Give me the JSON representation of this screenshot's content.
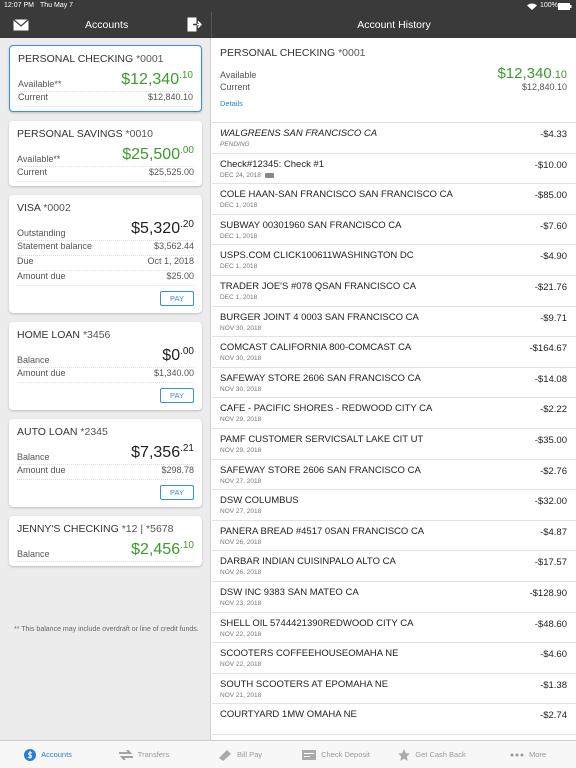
{
  "status_bar": {
    "time": "12:07 PM",
    "date": "Thu May 7",
    "battery": "100%"
  },
  "left_header": {
    "title": "Accounts"
  },
  "right_header": {
    "title": "Account History"
  },
  "accounts": [
    {
      "name": "PERSONAL CHECKING",
      "number": "*0001",
      "selected": true,
      "rows": [
        {
          "label": "Available**",
          "main": "$12,340",
          "cents": ".10",
          "green": true
        },
        {
          "label": "Current",
          "value": "$12,840.10"
        }
      ]
    },
    {
      "name": "PERSONAL SAVINGS",
      "number": "*0010",
      "rows": [
        {
          "label": "Available**",
          "main": "$25,500",
          "cents": ".00",
          "green": true
        },
        {
          "label": "Current",
          "value": "$25,525.00"
        }
      ]
    },
    {
      "name": "VISA",
      "number": "*0002",
      "rows": [
        {
          "label": "Outstanding",
          "main": "$5,320",
          "cents": ".20"
        },
        {
          "label": "Statement balance",
          "value": "$3,562.44"
        },
        {
          "label": "Due",
          "value": "Oct 1, 2018"
        },
        {
          "label": "Amount due",
          "value": "$25.00"
        }
      ],
      "pay": "PAY"
    },
    {
      "name": "HOME LOAN",
      "number": "*3456",
      "rows": [
        {
          "label": "Balance",
          "main": "$0",
          "cents": ".00"
        },
        {
          "label": "Amount due",
          "value": "$1,340.00"
        }
      ],
      "pay": "PAY"
    },
    {
      "name": "AUTO LOAN",
      "number": "*2345",
      "rows": [
        {
          "label": "Balance",
          "main": "$7,356",
          "cents": ".21"
        },
        {
          "label": "Amount due",
          "value": "$298.78"
        }
      ],
      "pay": "PAY"
    },
    {
      "name": "JENNY'S CHECKING",
      "number": "*12 | *5678",
      "rows": [
        {
          "label": "Balance",
          "main": "$2,456",
          "cents": ".10",
          "green": true
        }
      ]
    }
  ],
  "footnote": "** This balance may include overdraft or line of credit funds.",
  "summary": {
    "name": "PERSONAL CHECKING",
    "number": "*0001",
    "available_label": "Available",
    "available_main": "$12,340",
    "available_cents": ".10",
    "current_label": "Current",
    "current": "$12,840.10",
    "details": "Details"
  },
  "transactions": [
    {
      "description": "WALGREENS SAN FRANCISCO CA",
      "date": "PENDING",
      "amount": "-$4.33",
      "italic": true
    },
    {
      "description": "Check#12345: Check #1",
      "date": "DEC 24, 2018",
      "amount": "-$10.00",
      "check_icon": true
    },
    {
      "description": "COLE HAAN-SAN FRANCISCO SAN FRANCISCO CA",
      "date": "DEC 1, 2018",
      "amount": "-$85.00"
    },
    {
      "description": "SUBWAY 00301960 SAN FRANCISCO CA",
      "date": "DEC 1, 2018",
      "amount": "-$7.60"
    },
    {
      "description": "USPS.COM CLICK100611WASHINGTON DC",
      "date": "DEC 1, 2018",
      "amount": "-$4.90"
    },
    {
      "description": "TRADER JOE'S #078 QSAN FRANCISCO CA",
      "date": "DEC 1, 2018",
      "amount": "-$21.76"
    },
    {
      "description": "BURGER JOINT 4 0003 SAN FRANCISCO CA",
      "date": "NOV 30, 2018",
      "amount": "-$9.71"
    },
    {
      "description": "COMCAST CALIFORNIA 800-COMCAST CA",
      "date": "NOV 30, 2018",
      "amount": "-$164.67"
    },
    {
      "description": "SAFEWAY STORE 2606 SAN FRANCISCO CA",
      "date": "NOV 30, 2018",
      "amount": "-$14.08"
    },
    {
      "description": "CAFE - PACIFIC SHORES - REDWOOD CITY CA",
      "date": "NOV 29, 2018",
      "amount": "-$2.22"
    },
    {
      "description": "PAMF CUSTOMER SERVICSALT LAKE CIT UT",
      "date": "NOV 29, 2018",
      "amount": "-$35.00"
    },
    {
      "description": "SAFEWAY STORE 2606 SAN FRANCISCO CA",
      "date": "NOV 27, 2018",
      "amount": "-$2.76"
    },
    {
      "description": "DSW COLUMBUS",
      "date": "NOV 27, 2018",
      "amount": "-$32.00"
    },
    {
      "description": "PANERA BREAD #4517 0SAN FRANCISCO CA",
      "date": "NOV 26, 2018",
      "amount": "-$4.87"
    },
    {
      "description": "DARBAR INDIAN CUISINPALO ALTO CA",
      "date": "NOV 26, 2018",
      "amount": "-$17.57"
    },
    {
      "description": "DSW INC 9383 SAN MATEO CA",
      "date": "NOV 23, 2018",
      "amount": "-$128.90"
    },
    {
      "description": "SHELL OIL 5744421390REDWOOD CITY CA",
      "date": "NOV 22, 2018",
      "amount": "-$48.60"
    },
    {
      "description": "SCOOTERS COFFEEHOUSEOMAHA NE",
      "date": "NOV 22, 2018",
      "amount": "-$4.60"
    },
    {
      "description": "SOUTH SCOOTERS AT EPOMAHA NE",
      "date": "NOV 21, 2018",
      "amount": "-$1.38"
    },
    {
      "description": "COURTYARD 1MW OMAHA NE",
      "amount": "-$2.74"
    }
  ],
  "tabs": [
    {
      "label": "Accounts",
      "active": true
    },
    {
      "label": "Transfers"
    },
    {
      "label": "Bill Pay"
    },
    {
      "label": "Check Deposit"
    },
    {
      "label": "Get Cash Back"
    },
    {
      "label": "More"
    }
  ]
}
